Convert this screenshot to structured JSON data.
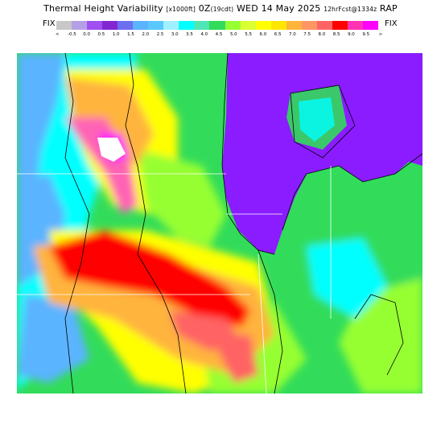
{
  "header": {
    "title_main": "Thermal Height Variability",
    "title_units": "[x1000ft]",
    "title_time": "0Z",
    "title_local": "(19cdt)",
    "title_date": "WED 14 May 2025",
    "title_fcst": "12hrFcst@1334z",
    "title_model": "RAP",
    "fix_left": "FIX",
    "fix_right": "FIX"
  },
  "legend": {
    "colors": [
      "#c8c8c8",
      "#b4a0e6",
      "#a050f0",
      "#8228d2",
      "#6e6ef0",
      "#5ab4ff",
      "#5ac8ff",
      "#a0f0ff",
      "#00ffff",
      "#50e6b4",
      "#32dc5a",
      "#96ff32",
      "#dcff32",
      "#ffff00",
      "#ffe600",
      "#ffb43c",
      "#ff9664",
      "#ff6464",
      "#ff0000",
      "#ff32b4",
      "#ff00ff"
    ],
    "ticks": [
      "<",
      "-0.5",
      "0.0",
      "0.5",
      "1.0",
      "1.5",
      "2.0",
      "2.5",
      "3.0",
      "3.5",
      "4.0",
      "4.5",
      "5.0",
      "5.5",
      "6.0",
      "6.5",
      "7.0",
      "7.5",
      "8.0",
      "8.5",
      "9.0",
      "9.5",
      ">"
    ]
  },
  "map": {
    "region": "Upper Midwest / Great Lakes",
    "features": [
      "Lake Michigan",
      "Lake Superior",
      "Lake Huron"
    ],
    "colors": {
      "lake": "#8a1cff",
      "cyan": "#00ffff",
      "green": "#32dc5a",
      "yellow_green": "#96ff32",
      "yellow": "#ffff00",
      "orange": "#ffb43c",
      "red": "#ff0000",
      "pink": "#ff64b4",
      "blue": "#5ab4ff",
      "white": "#ffffff"
    }
  }
}
